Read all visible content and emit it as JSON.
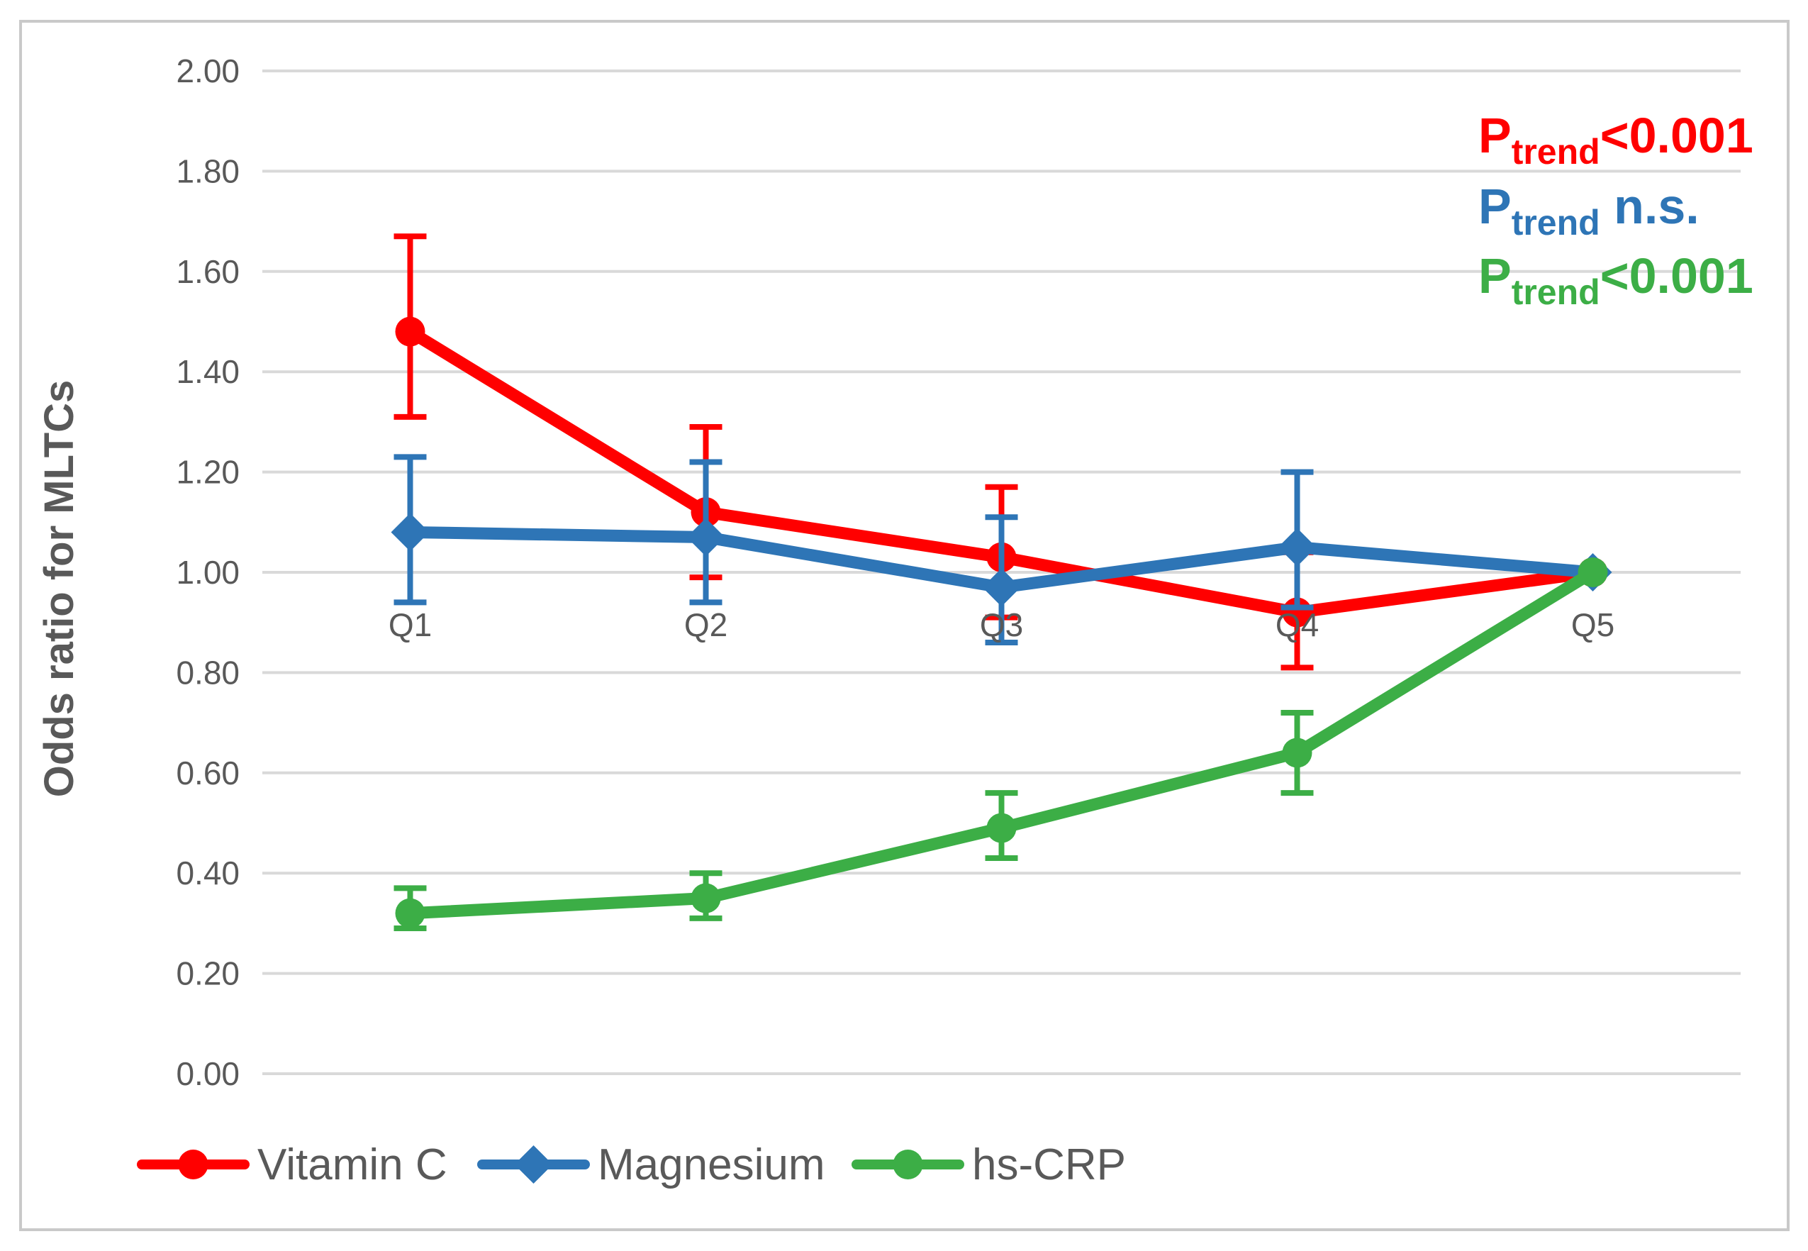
{
  "figure": {
    "y_axis_title": "Odds ratio for MLTCs"
  },
  "chart_data": {
    "type": "line",
    "title": "",
    "xlabel": "",
    "ylabel": "Odds ratio for MLTCs",
    "ylim": [
      0.0,
      2.0
    ],
    "ytick_step": 0.2,
    "grid": true,
    "legend_position": "bottom",
    "categories": [
      "Q1",
      "Q2",
      "Q3",
      "Q4",
      "Q5"
    ],
    "series": [
      {
        "name": "Vitamin C",
        "color": "#FF0000",
        "marker": "circle",
        "values": [
          1.48,
          1.12,
          1.03,
          0.92,
          1.0
        ],
        "ci_low": [
          1.31,
          0.99,
          0.91,
          0.81,
          null
        ],
        "ci_high": [
          1.67,
          1.29,
          1.17,
          1.04,
          null
        ]
      },
      {
        "name": "Magnesium",
        "color": "#2E75B6",
        "marker": "diamond",
        "values": [
          1.08,
          1.07,
          0.97,
          1.05,
          1.0
        ],
        "ci_low": [
          0.94,
          0.94,
          0.86,
          0.93,
          null
        ],
        "ci_high": [
          1.23,
          1.22,
          1.11,
          1.2,
          null
        ]
      },
      {
        "name": "hs-CRP",
        "color": "#3CAE46",
        "marker": "circle",
        "values": [
          0.32,
          0.35,
          0.49,
          0.64,
          1.0
        ],
        "ci_low": [
          0.29,
          0.31,
          0.43,
          0.56,
          null
        ],
        "ci_high": [
          0.37,
          0.4,
          0.56,
          0.72,
          null
        ]
      }
    ],
    "annotations": [
      {
        "p": "P",
        "sub": "trend",
        "rest": "<0.001",
        "color": "#FF0000",
        "series": "Vitamin C"
      },
      {
        "p": "P",
        "sub": "trend",
        "rest": " n.s.",
        "color": "#2E75B6",
        "series": "Magnesium"
      },
      {
        "p": "P",
        "sub": "trend",
        "rest": "<0.001",
        "color": "#3CAE46",
        "series": "hs-CRP"
      }
    ]
  }
}
